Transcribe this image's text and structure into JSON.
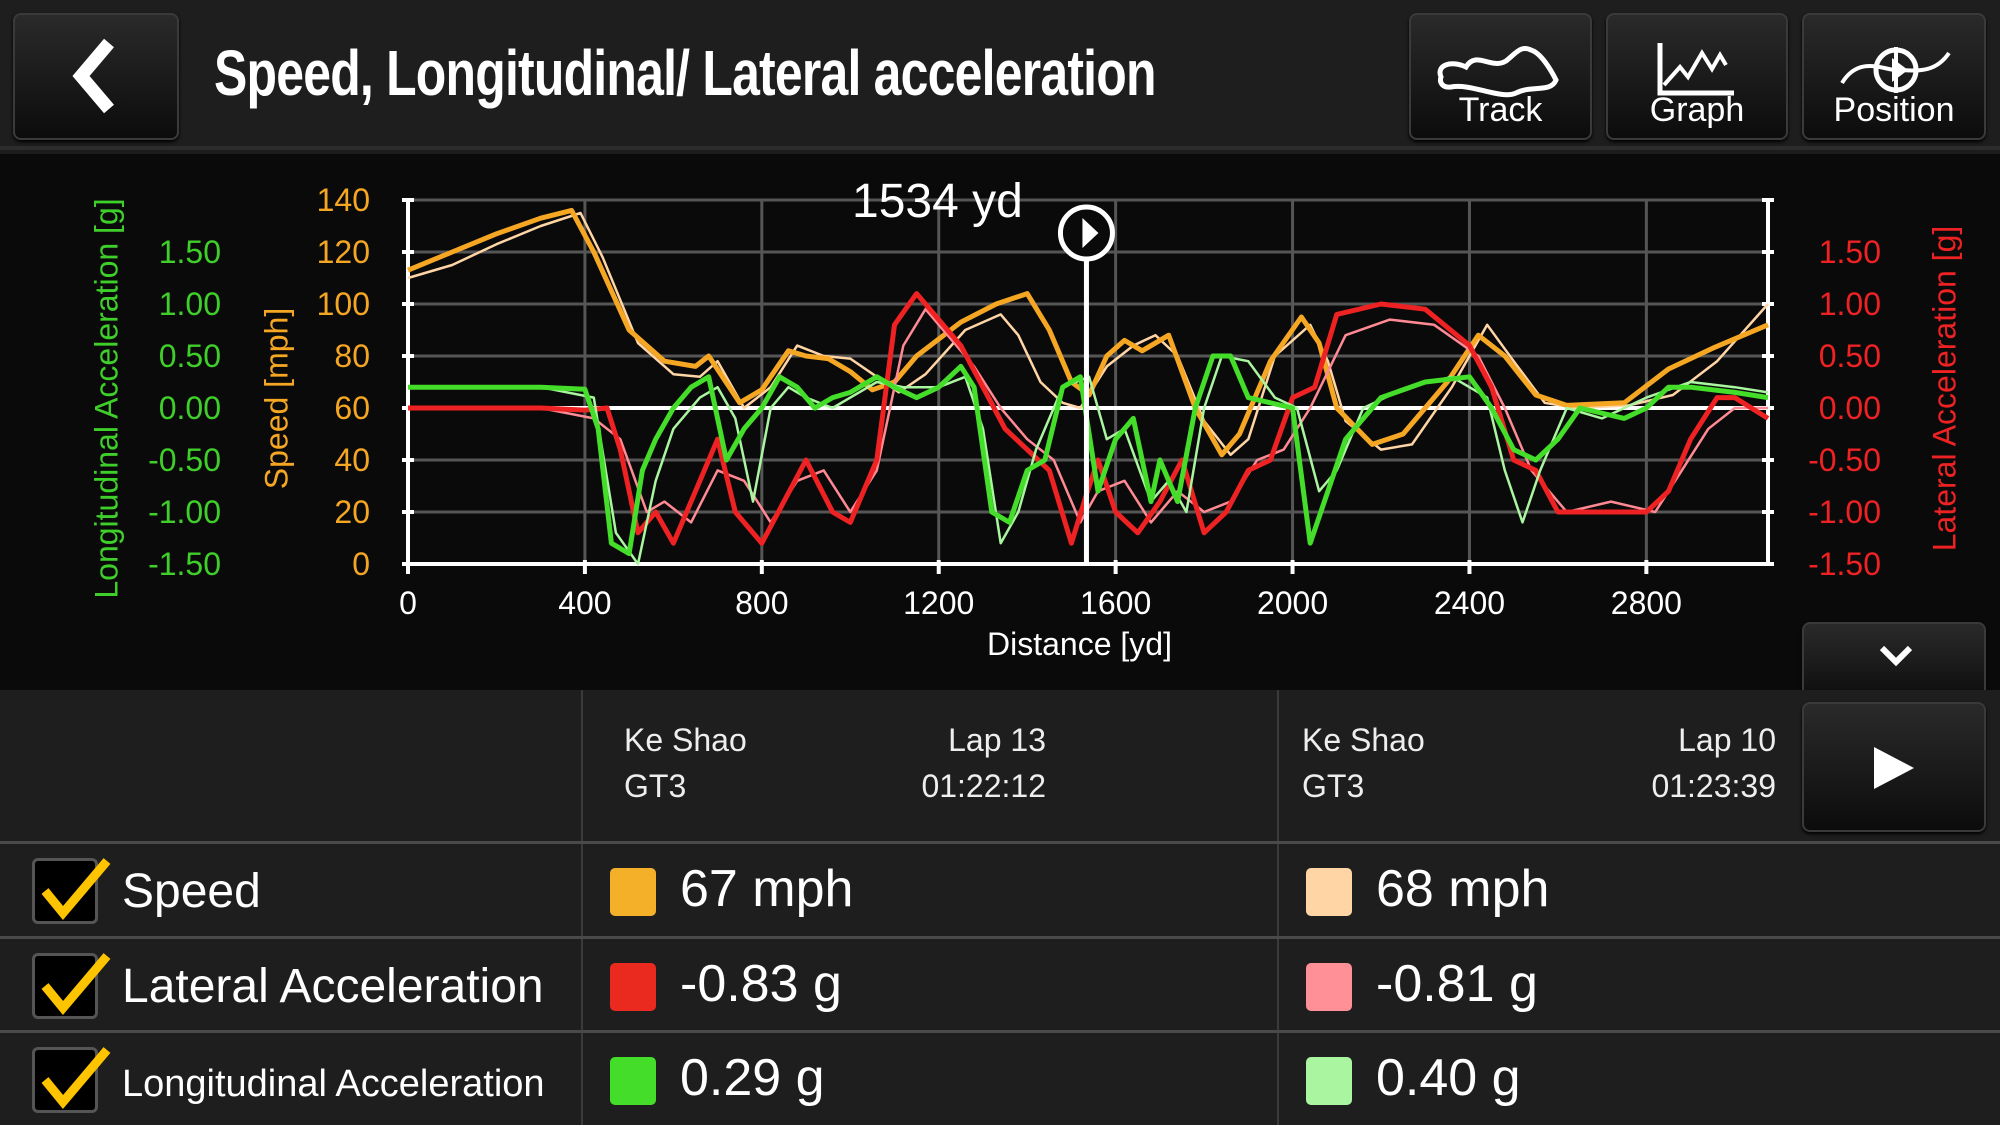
{
  "header": {
    "title": "Speed, Longitudinal/ Lateral acceleration",
    "back_icon": "chevron-left-icon",
    "buttons": [
      {
        "label": "Track",
        "icon": "track-icon"
      },
      {
        "label": "Graph",
        "icon": "graph-icon"
      },
      {
        "label": "Position",
        "icon": "position-icon"
      }
    ]
  },
  "chart": {
    "cursor_label": "1534 yd",
    "left_axis_title": "Longitudinal Acceleration [g]",
    "speed_axis_title": "Speed [mph]",
    "right_axis_title": "Lateral Acceleration [g]",
    "x_axis_title": "Distance [yd]"
  },
  "chart_data": {
    "type": "line",
    "grid": true,
    "xlabel": "Distance [yd]",
    "xlim": [
      0,
      3075
    ],
    "x_ticks": [
      "0",
      "400",
      "800",
      "1200",
      "1600",
      "2000",
      "2400",
      "2800"
    ],
    "speed_ticks": [
      "0",
      "20",
      "40",
      "60",
      "80",
      "100",
      "120",
      "140"
    ],
    "accel_ticks": [
      "-1.50",
      "-1.00",
      "-0.50",
      "0.00",
      "0.50",
      "1.00",
      "1.50"
    ],
    "speed_ylim": [
      0,
      140
    ],
    "accel_ylim": [
      -1.5,
      2.0
    ],
    "cursor_x": 1534,
    "colors": {
      "speed_lap13": "#f5a623",
      "speed_lap10": "#ffd5a6",
      "lat_lap13": "#ee2222",
      "lat_lap10": "#ff8a94",
      "long_lap13": "#44dd2a",
      "long_lap10": "#aaf5a0"
    },
    "series": [
      {
        "key": "speed_lap10",
        "axis": "speed",
        "x": [
          0,
          100,
          200,
          300,
          390,
          440,
          520,
          600,
          660,
          700,
          760,
          820,
          880,
          940,
          1000,
          1060,
          1110,
          1170,
          1260,
          1340,
          1380,
          1430,
          1480,
          1520,
          1580,
          1640,
          1690,
          1740,
          1800,
          1860,
          1900,
          1960,
          2040,
          2080,
          2120,
          2200,
          2270,
          2360,
          2440,
          2500,
          2570,
          2640,
          2760,
          2860,
          2960,
          3075
        ],
        "y": [
          110,
          115,
          123,
          130,
          135,
          118,
          85,
          73,
          72,
          78,
          60,
          68,
          84,
          80,
          79,
          72,
          66,
          73,
          90,
          96,
          88,
          70,
          62,
          60,
          76,
          84,
          88,
          80,
          55,
          42,
          48,
          80,
          92,
          78,
          55,
          44,
          46,
          68,
          92,
          78,
          62,
          60,
          61,
          65,
          78,
          100
        ]
      },
      {
        "key": "speed_lap13",
        "axis": "speed",
        "x": [
          0,
          100,
          200,
          300,
          370,
          420,
          500,
          580,
          650,
          680,
          750,
          800,
          860,
          900,
          950,
          1000,
          1050,
          1100,
          1150,
          1250,
          1330,
          1400,
          1450,
          1500,
          1540,
          1580,
          1620,
          1660,
          1720,
          1780,
          1840,
          1880,
          1950,
          2020,
          2060,
          2100,
          2180,
          2250,
          2350,
          2420,
          2480,
          2550,
          2620,
          2750,
          2850,
          2950,
          3075
        ],
        "y": [
          113,
          120,
          127,
          133,
          136,
          120,
          90,
          78,
          76,
          80,
          62,
          67,
          82,
          80,
          79,
          74,
          67,
          70,
          80,
          93,
          100,
          104,
          90,
          70,
          65,
          80,
          86,
          82,
          88,
          60,
          42,
          50,
          78,
          95,
          85,
          60,
          46,
          50,
          70,
          88,
          80,
          65,
          61,
          62,
          75,
          83,
          92
        ]
      },
      {
        "key": "lat_lap10",
        "axis": "accel",
        "x": [
          0,
          300,
          420,
          480,
          540,
          580,
          640,
          700,
          760,
          820,
          880,
          940,
          1000,
          1060,
          1120,
          1170,
          1220,
          1280,
          1340,
          1400,
          1460,
          1520,
          1560,
          1620,
          1680,
          1740,
          1800,
          1860,
          1920,
          1980,
          2040,
          2120,
          2220,
          2320,
          2420,
          2480,
          2540,
          2620,
          2720,
          2820,
          2880,
          2940,
          3000,
          3075
        ],
        "y": [
          0,
          0,
          -0.1,
          -0.3,
          -1.0,
          -0.9,
          -1.1,
          -0.6,
          -0.7,
          -1.1,
          -0.7,
          -0.6,
          -1.0,
          -0.6,
          0.6,
          0.95,
          0.7,
          0.4,
          0.0,
          -0.3,
          -0.5,
          -1.1,
          -0.8,
          -0.7,
          -1.1,
          -0.8,
          -1.0,
          -0.9,
          -0.5,
          -0.4,
          0.0,
          0.7,
          0.85,
          0.8,
          0.5,
          0.0,
          -0.6,
          -1.0,
          -0.9,
          -1.0,
          -0.6,
          -0.2,
          0.0,
          0.0
        ]
      },
      {
        "key": "lat_lap13",
        "axis": "accel",
        "x": [
          0,
          300,
          400,
          450,
          480,
          520,
          560,
          600,
          650,
          700,
          740,
          800,
          850,
          900,
          960,
          1000,
          1060,
          1100,
          1150,
          1200,
          1250,
          1300,
          1350,
          1400,
          1450,
          1500,
          1534,
          1560,
          1600,
          1650,
          1700,
          1750,
          1800,
          1850,
          1900,
          1950,
          2000,
          2050,
          2100,
          2200,
          2300,
          2400,
          2450,
          2500,
          2550,
          2600,
          2700,
          2800,
          2850,
          2900,
          2960,
          3000,
          3075
        ],
        "y": [
          0,
          0,
          -0.02,
          0,
          -0.4,
          -1.2,
          -1.0,
          -1.3,
          -0.8,
          -0.3,
          -1.0,
          -1.3,
          -0.9,
          -0.5,
          -1.0,
          -1.1,
          -0.5,
          0.8,
          1.1,
          0.85,
          0.6,
          0.2,
          -0.2,
          -0.4,
          -0.6,
          -1.3,
          -0.83,
          -0.5,
          -1.0,
          -1.2,
          -0.9,
          -0.5,
          -1.2,
          -1.0,
          -0.6,
          -0.5,
          0.1,
          0.2,
          0.9,
          1.0,
          0.95,
          0.6,
          0.2,
          -0.5,
          -0.6,
          -1.0,
          -1.0,
          -1.0,
          -0.8,
          -0.3,
          0.1,
          0.1,
          -0.1
        ]
      },
      {
        "key": "long_lap10",
        "axis": "accel",
        "x": [
          0,
          300,
          420,
          470,
          520,
          560,
          600,
          660,
          700,
          740,
          780,
          820,
          860,
          900,
          960,
          1000,
          1060,
          1120,
          1200,
          1260,
          1300,
          1340,
          1380,
          1420,
          1480,
          1540,
          1580,
          1620,
          1680,
          1720,
          1760,
          1800,
          1840,
          1900,
          1960,
          2010,
          2060,
          2100,
          2160,
          2260,
          2360,
          2440,
          2480,
          2520,
          2560,
          2620,
          2700,
          2800,
          2900,
          3000,
          3075
        ],
        "y": [
          0.2,
          0.2,
          0.1,
          -1.2,
          -1.5,
          -0.7,
          -0.2,
          0.1,
          0.2,
          -0.1,
          -0.9,
          0.0,
          0.2,
          0.1,
          0.0,
          0.1,
          0.25,
          0.2,
          0.2,
          0.3,
          -0.2,
          -1.3,
          -1.0,
          -0.4,
          0.2,
          0.3,
          -0.3,
          -0.2,
          -0.9,
          -0.7,
          -1.0,
          0.0,
          0.5,
          0.45,
          0.1,
          0.0,
          -0.8,
          -0.6,
          0.0,
          0.2,
          0.3,
          0.1,
          -0.6,
          -1.1,
          -0.6,
          0.0,
          -0.1,
          0.1,
          0.25,
          0.2,
          0.15
        ]
      },
      {
        "key": "long_lap13",
        "axis": "accel",
        "x": [
          0,
          300,
          400,
          430,
          460,
          500,
          530,
          560,
          600,
          640,
          680,
          720,
          760,
          800,
          840,
          880,
          920,
          960,
          1000,
          1060,
          1100,
          1150,
          1200,
          1250,
          1280,
          1320,
          1360,
          1400,
          1440,
          1480,
          1520,
          1560,
          1600,
          1640,
          1680,
          1700,
          1740,
          1780,
          1820,
          1860,
          1900,
          1950,
          2000,
          2040,
          2080,
          2120,
          2200,
          2300,
          2400,
          2450,
          2500,
          2550,
          2600,
          2650,
          2750,
          2800,
          2850,
          2900,
          3000,
          3075
        ],
        "y": [
          0.2,
          0.2,
          0.18,
          -0.2,
          -1.3,
          -1.4,
          -0.6,
          -0.3,
          0.0,
          0.2,
          0.3,
          -0.5,
          -0.2,
          0.0,
          0.3,
          0.2,
          0.0,
          0.1,
          0.15,
          0.3,
          0.2,
          0.1,
          0.2,
          0.4,
          0.2,
          -1.0,
          -1.1,
          -0.6,
          -0.5,
          0.2,
          0.3,
          -0.8,
          -0.3,
          -0.1,
          -0.9,
          -0.5,
          -0.9,
          0.0,
          0.5,
          0.5,
          0.1,
          0.05,
          0.0,
          -1.3,
          -0.8,
          -0.3,
          0.1,
          0.25,
          0.3,
          0.0,
          -0.4,
          -0.5,
          -0.3,
          0.0,
          -0.1,
          0.0,
          0.2,
          0.2,
          0.15,
          0.1
        ]
      }
    ]
  },
  "table": {
    "laps": [
      {
        "driver": "Ke Shao",
        "car": "GT3",
        "lap": "Lap 13",
        "time": "01:22:12"
      },
      {
        "driver": "Ke Shao",
        "car": "GT3",
        "lap": "Lap 10",
        "time": "01:23:39"
      }
    ],
    "rows": [
      {
        "label": "Speed",
        "checked": true,
        "values": [
          "67 mph",
          "68 mph"
        ],
        "colors": [
          "#f5b02a",
          "#ffd5a6"
        ]
      },
      {
        "label": "Lateral Acceleration",
        "checked": true,
        "values": [
          "-0.83 g",
          "-0.81 g"
        ],
        "colors": [
          "#ea2a1e",
          "#ff9098"
        ]
      },
      {
        "label": "Longitudinal Acceleration",
        "checked": true,
        "values": [
          "0.29 g",
          "0.40 g"
        ],
        "colors": [
          "#44dd2a",
          "#aaf5a0"
        ]
      }
    ],
    "collapse_icon": "chevron-down-icon",
    "play_icon": "play-icon"
  }
}
